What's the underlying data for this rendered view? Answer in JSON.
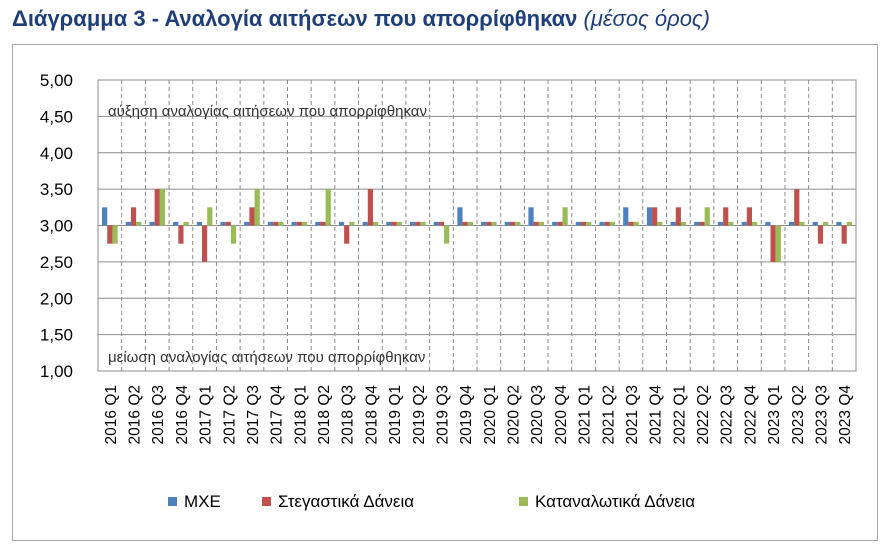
{
  "header": {
    "title_main": "Διάγραμμα 3 - Αναλογία αιτήσεων που απορρίφθηκαν",
    "title_sub": "(μέσος όρος)"
  },
  "colors": {
    "mxe": "#4f81bd",
    "housing": "#c0504d",
    "consumer": "#9bbb59",
    "grid": "#8c8c8c"
  },
  "chart_data": {
    "type": "bar",
    "title": "Διάγραμμα 3 - Αναλογία αιτήσεων που απορρίφθηκαν (μέσος όρος)",
    "ylim": [
      1.0,
      5.0
    ],
    "yticks": [
      "1,00",
      "1,50",
      "2,00",
      "2,50",
      "3,00",
      "3,50",
      "4,00",
      "4,50",
      "5,00"
    ],
    "ytick_values": [
      1.0,
      1.5,
      2.0,
      2.5,
      3.0,
      3.5,
      4.0,
      4.5,
      5.0
    ],
    "baseline": 3.0,
    "grid": true,
    "legend_position": "bottom",
    "annotations": {
      "upper": "αύξηση αναλογίας αιτήσεων που απορρίφθηκαν",
      "lower": "μείωση αναλογίας αιτήσεων που απορρίφθηκαν"
    },
    "categories": [
      "2016 Q1",
      "2016 Q2",
      "2016 Q3",
      "2016 Q4",
      "2017 Q1",
      "2017 Q2",
      "2017 Q3",
      "2017 Q4",
      "2018 Q1",
      "2018 Q2",
      "2018 Q3",
      "2018 Q4",
      "2019 Q1",
      "2019 Q2",
      "2019 Q3",
      "2019 Q4",
      "2020 Q1",
      "2020 Q2",
      "2020 Q3",
      "2020 Q4",
      "2021 Q1",
      "2021 Q2",
      "2021 Q3",
      "2021 Q4",
      "2022 Q1",
      "2022 Q2",
      "2022 Q3",
      "2022 Q4",
      "2023 Q1",
      "2023 Q2",
      "2023 Q3",
      "2023 Q4"
    ],
    "series": [
      {
        "name": "ΜΧΕ",
        "color": "#4f81bd",
        "values": [
          3.25,
          3.05,
          3.05,
          3.05,
          3.05,
          3.05,
          3.05,
          3.05,
          3.05,
          3.05,
          3.05,
          3.05,
          3.05,
          3.05,
          3.05,
          3.25,
          3.05,
          3.05,
          3.25,
          3.05,
          3.05,
          3.05,
          3.25,
          3.25,
          3.05,
          3.05,
          3.05,
          3.05,
          3.05,
          3.05,
          3.05,
          3.05
        ]
      },
      {
        "name": "Στεγαστικά Δάνεια",
        "color": "#c0504d",
        "values": [
          2.75,
          3.25,
          3.5,
          2.75,
          2.5,
          3.05,
          3.25,
          3.05,
          3.05,
          3.05,
          2.75,
          3.5,
          3.05,
          3.05,
          3.05,
          3.05,
          3.05,
          3.05,
          3.05,
          3.05,
          3.05,
          3.05,
          3.05,
          3.25,
          3.25,
          3.05,
          3.25,
          3.25,
          2.5,
          3.5,
          2.75,
          2.75
        ]
      },
      {
        "name": "Καταναλωτικά Δάνεια",
        "color": "#9bbb59",
        "values": [
          2.75,
          3.05,
          3.5,
          3.05,
          3.25,
          2.75,
          3.5,
          3.05,
          3.05,
          3.5,
          3.05,
          3.05,
          3.05,
          3.05,
          2.75,
          3.05,
          3.05,
          3.05,
          3.05,
          3.25,
          3.05,
          3.05,
          3.05,
          3.05,
          3.05,
          3.25,
          3.05,
          3.05,
          2.5,
          3.05,
          3.05,
          3.05
        ]
      }
    ]
  }
}
